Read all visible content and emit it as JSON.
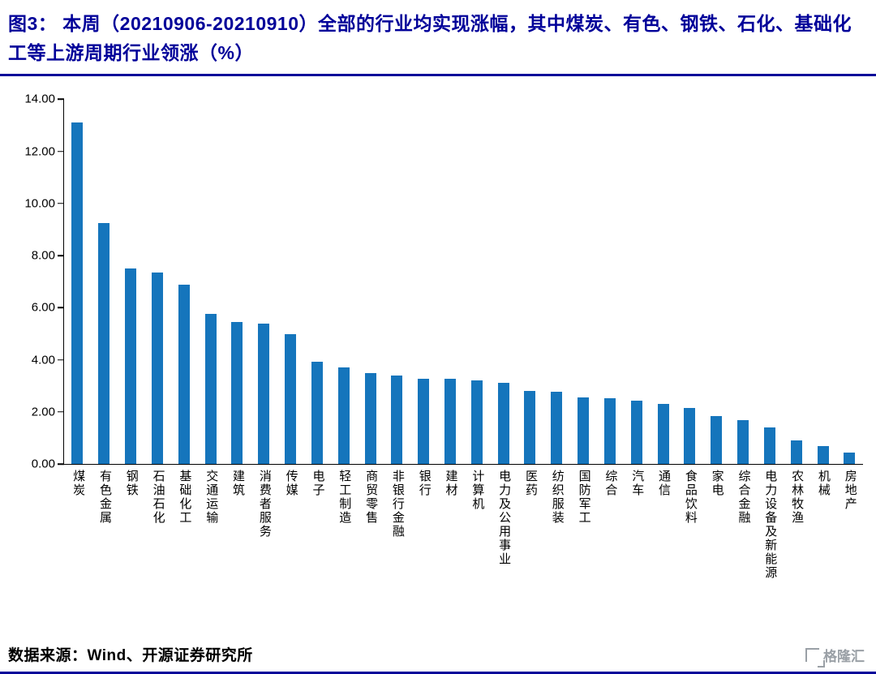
{
  "page": {
    "title": "图3：  本周（20210906-20210910）全部的行业均实现涨幅，其中煤炭、有色、钢铁、石化、基础化工等上游周期行业领涨（%）",
    "source_label": "数据来源：Wind、开源证券研究所",
    "logo_text": "格隆汇",
    "colors": {
      "accent": "#000099",
      "bar": "#1575bc",
      "logo": "#9aa0a6"
    }
  },
  "chart_data": {
    "type": "bar",
    "title": "本周（20210906-20210910）全部的行业均实现涨幅，其中煤炭、有色、钢铁、石化、基础化工等上游周期行业领涨（%）",
    "categories": [
      "煤炭",
      "有色金属",
      "钢铁",
      "石油石化",
      "基础化工",
      "交通运输",
      "建筑",
      "消费者服务",
      "传媒",
      "电子",
      "轻工制造",
      "商贸零售",
      "非银行金融",
      "银行",
      "建材",
      "计算机",
      "电力及公用事业",
      "医药",
      "纺织服装",
      "国防军工",
      "综合",
      "汽车",
      "通信",
      "食品饮料",
      "家电",
      "综合金融",
      "电力设备及新能源",
      "农林牧渔",
      "机械",
      "房地产"
    ],
    "values": [
      13.1,
      9.25,
      7.5,
      7.35,
      6.9,
      5.78,
      5.45,
      5.4,
      5.0,
      3.93,
      3.72,
      3.48,
      3.4,
      3.27,
      3.27,
      3.22,
      3.12,
      2.8,
      2.77,
      2.57,
      2.53,
      2.43,
      2.3,
      2.17,
      1.85,
      1.7,
      1.42,
      0.9,
      0.7,
      0.45
    ],
    "xlabel": "",
    "ylabel": "",
    "ylim": [
      0,
      14
    ],
    "y_ticks": [
      "14.00",
      "12.00",
      "10.00",
      "8.00",
      "6.00",
      "4.00",
      "2.00",
      "0.00"
    ],
    "grid": false,
    "legend": "none",
    "bar_color": "#1575bc"
  }
}
